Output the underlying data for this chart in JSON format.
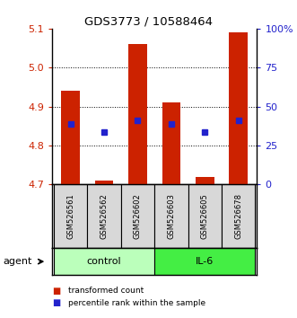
{
  "title": "GDS3773 / 10588464",
  "samples": [
    "GSM526561",
    "GSM526562",
    "GSM526602",
    "GSM526603",
    "GSM526605",
    "GSM526678"
  ],
  "bar_bottoms": [
    4.7,
    4.7,
    4.7,
    4.7,
    4.7,
    4.7
  ],
  "bar_tops": [
    4.94,
    4.71,
    5.06,
    4.91,
    4.72,
    5.09
  ],
  "percentile_values": [
    4.855,
    4.835,
    4.865,
    4.855,
    4.835,
    4.865
  ],
  "ylim": [
    4.7,
    5.1
  ],
  "yticks_left": [
    4.7,
    4.8,
    4.9,
    5.0,
    5.1
  ],
  "yticks_right_vals": [
    0,
    25,
    50,
    75,
    100
  ],
  "yticks_right_labels": [
    "0",
    "25",
    "50",
    "75",
    "100%"
  ],
  "grid_lines": [
    4.8,
    4.9,
    5.0
  ],
  "bar_color": "#cc2200",
  "percentile_color": "#2222cc",
  "groups": [
    {
      "label": "control",
      "indices": [
        0,
        1,
        2
      ],
      "color": "#bbffbb"
    },
    {
      "label": "IL-6",
      "indices": [
        3,
        4,
        5
      ],
      "color": "#44ee44"
    }
  ],
  "legend_items": [
    {
      "label": "transformed count",
      "color": "#cc2200"
    },
    {
      "label": "percentile rank within the sample",
      "color": "#2222cc"
    }
  ],
  "agent_label": "agent"
}
